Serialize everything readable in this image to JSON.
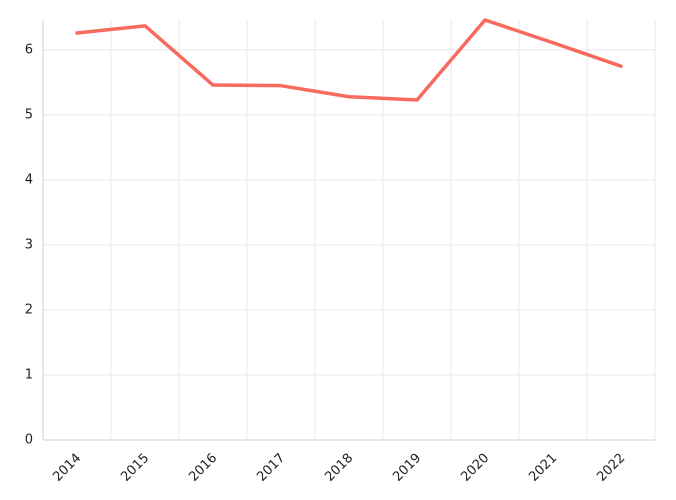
{
  "chart_data": {
    "type": "line",
    "categories": [
      "2014",
      "2015",
      "2016",
      "2017",
      "2018",
      "2019",
      "2020",
      "2021",
      "2022"
    ],
    "values": [
      6.26,
      6.37,
      5.46,
      5.45,
      5.28,
      5.23,
      6.46,
      6.11,
      5.75
    ],
    "color": "#f76a5c",
    "ylim": [
      0,
      6.46
    ],
    "yticks": [
      0,
      1,
      2,
      3,
      4,
      5,
      6
    ],
    "grid": true
  }
}
